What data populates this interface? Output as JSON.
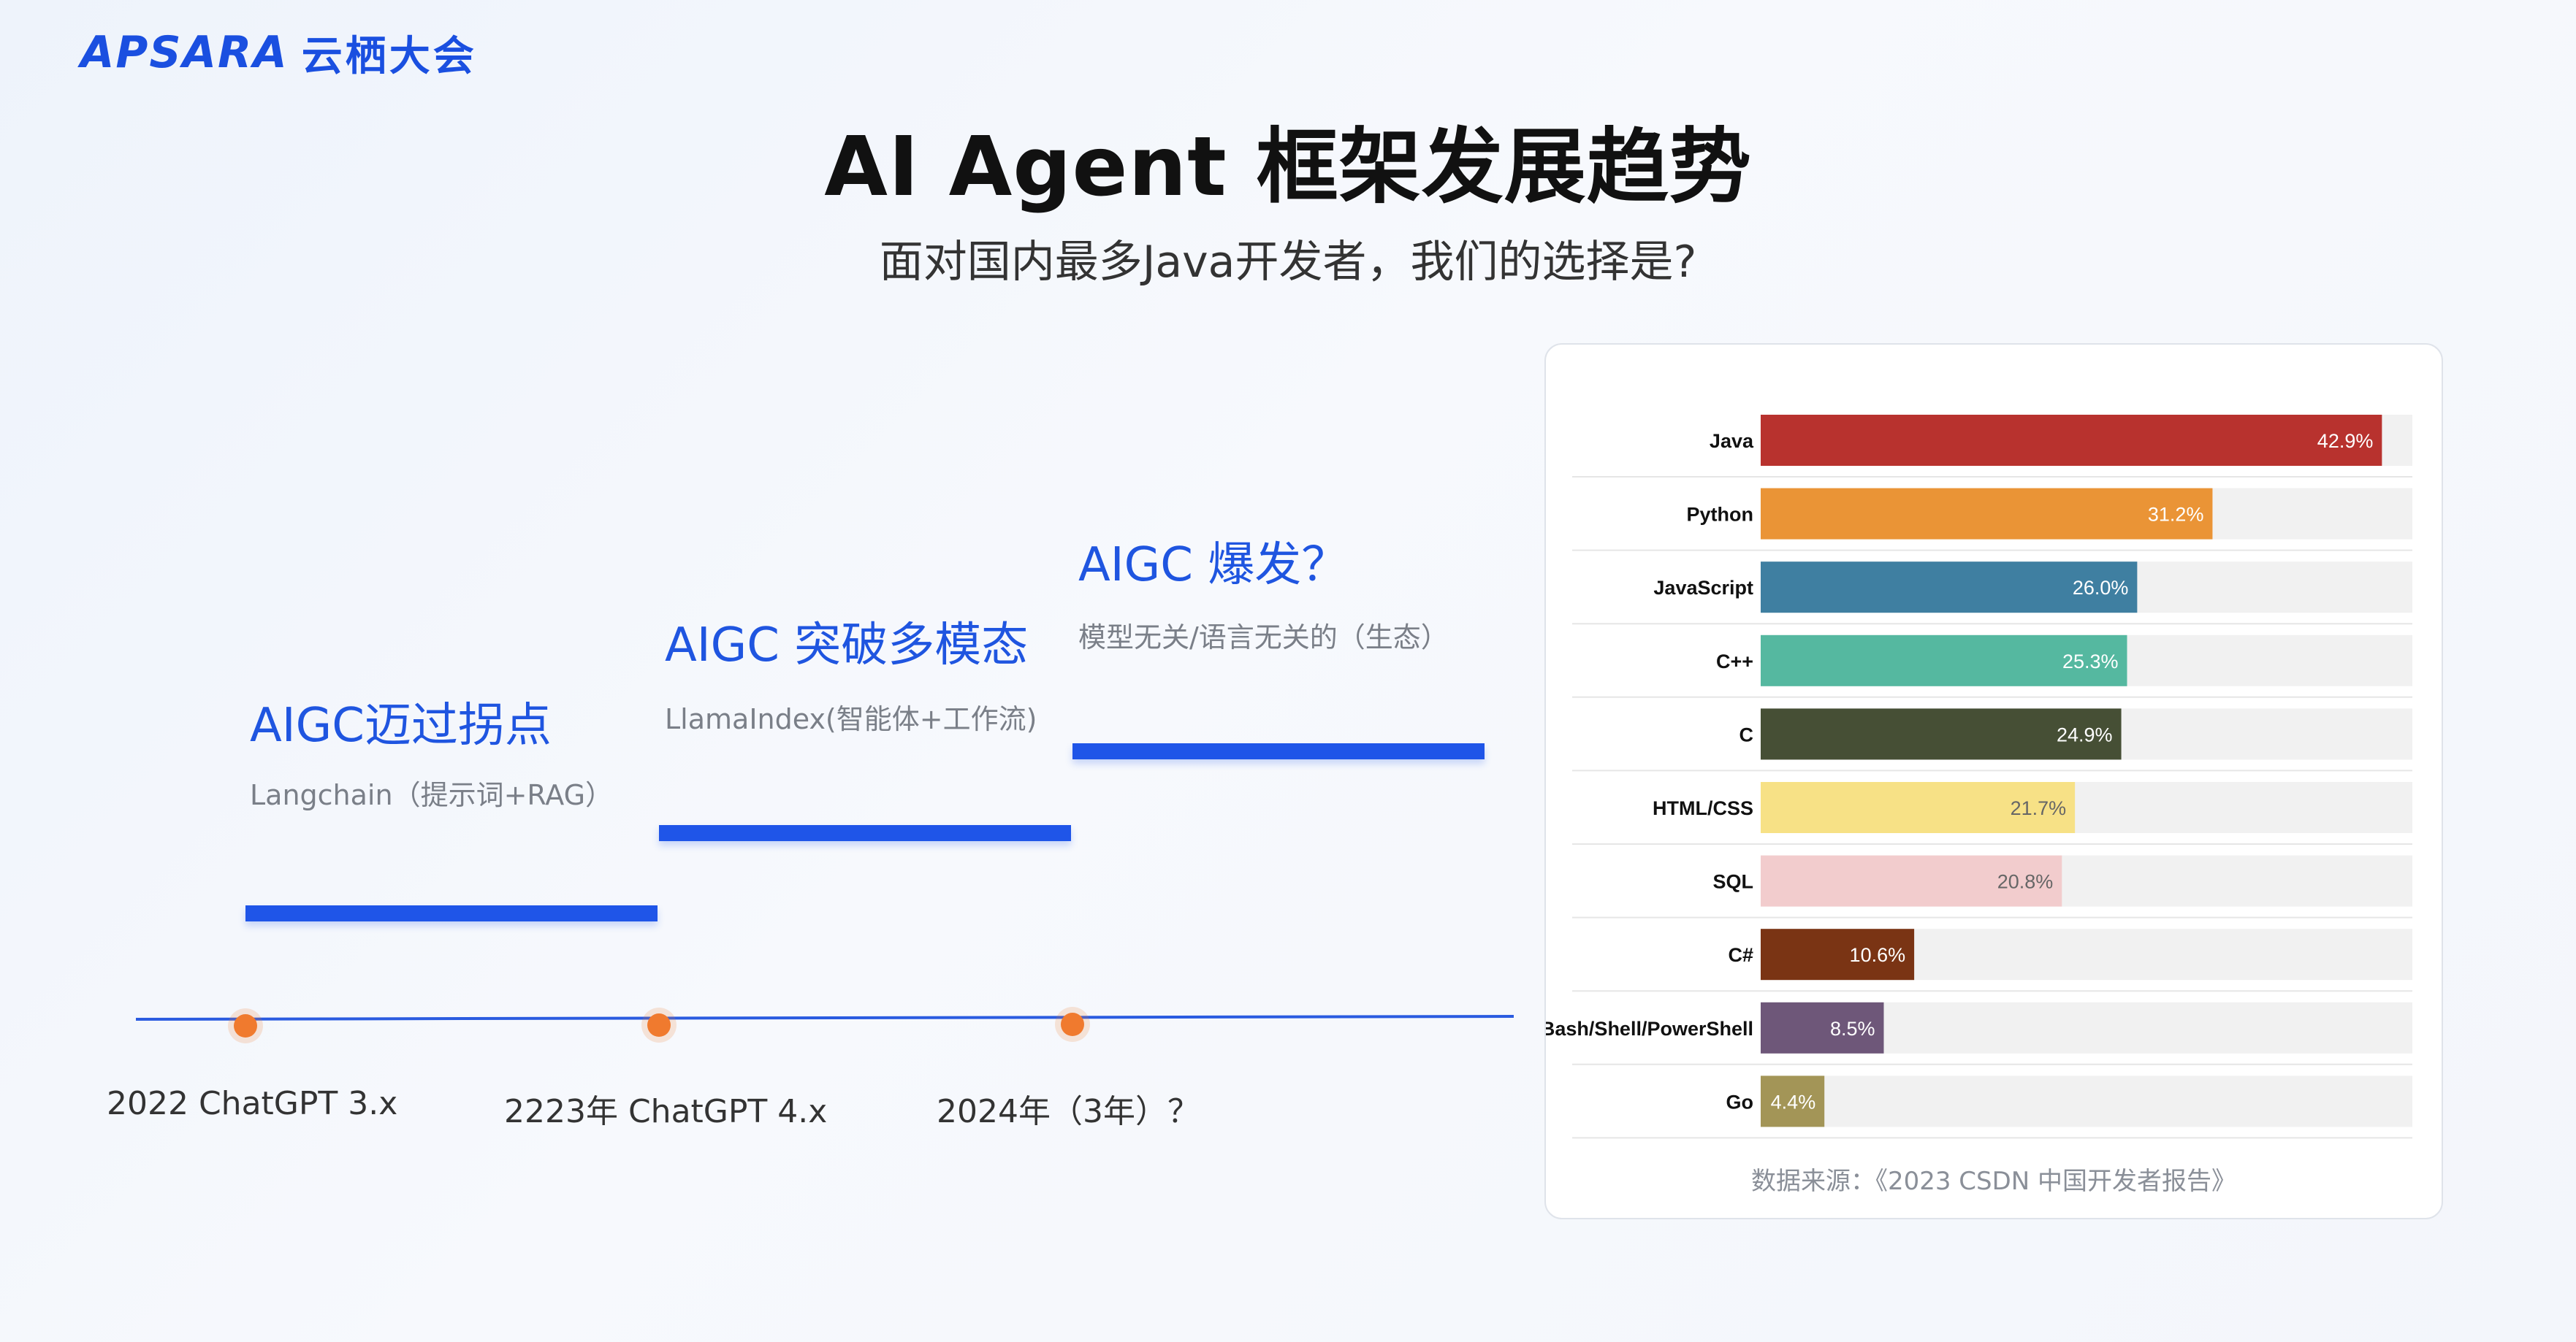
{
  "logo": {
    "brand": "APSARA",
    "name": "云栖大会"
  },
  "title": "AI Agent 框架发展趋势",
  "subtitle": "面对国内最多Java开发者，我们的选择是?",
  "stages": [
    {
      "title": "AIGC迈过拐点",
      "desc": "Langchain（提示词+RAG）"
    },
    {
      "title": "AIGC 突破多模态",
      "desc": "LlamaIndex(智能体+工作流)"
    },
    {
      "title": "AIGC 爆发？",
      "desc": "模型无关/语言无关的（生态）"
    }
  ],
  "timeline": [
    {
      "label": "2022 ChatGPT 3.x"
    },
    {
      "label": "2223年 ChatGPT 4.x"
    },
    {
      "label": "2024年（3年）？"
    }
  ],
  "colors": {
    "accent": "#1f55e8",
    "dot": "#f07a2e"
  },
  "chart_data": {
    "type": "bar",
    "orientation": "horizontal",
    "categories": [
      "Java",
      "Python",
      "JavaScript",
      "C++",
      "C",
      "HTML/CSS",
      "SQL",
      "C#",
      "Bash/Shell/PowerShell",
      "Go"
    ],
    "values": [
      42.9,
      31.2,
      26.0,
      25.3,
      24.9,
      21.7,
      20.8,
      10.6,
      8.5,
      4.4
    ],
    "labels": [
      "42.9%",
      "31.2%",
      "26.0%",
      "25.3%",
      "24.9%",
      "21.7%",
      "20.8%",
      "10.6%",
      "8.5%",
      "4.4%"
    ],
    "colors": [
      "#b8322e",
      "#ea9436",
      "#3f7fa1",
      "#55b8a0",
      "#464f35",
      "#f7e186",
      "#f2cccd",
      "#7a3414",
      "#6e5779",
      "#a39557"
    ],
    "xlim": [
      0,
      45
    ],
    "grid": false,
    "source": "数据来源：《2023 CSDN 中国开发者报告》"
  }
}
